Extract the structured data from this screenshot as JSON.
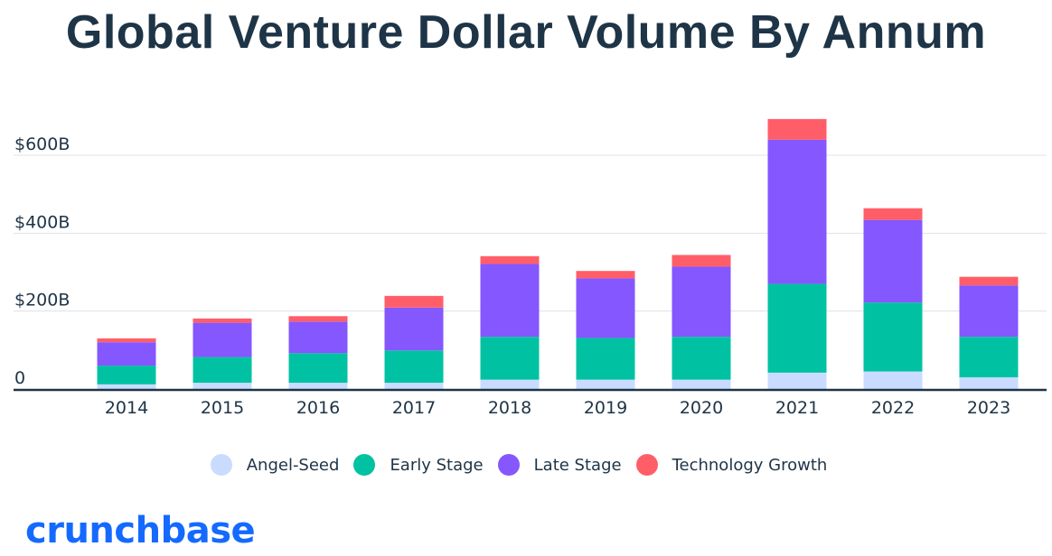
{
  "chart_data": {
    "type": "bar",
    "stacked": true,
    "title": "Global Venture Dollar Volume By Annum",
    "categories": [
      "2014",
      "2015",
      "2016",
      "2017",
      "2018",
      "2019",
      "2020",
      "2021",
      "2022",
      "2023"
    ],
    "series": [
      {
        "name": "Angel-Seed",
        "color": "#c9dcff",
        "values": [
          12,
          16,
          16,
          16,
          24,
          24,
          24,
          42,
          45,
          30
        ]
      },
      {
        "name": "Early Stage",
        "color": "#00c2a2",
        "values": [
          48,
          66,
          76,
          83,
          110,
          107,
          110,
          228,
          177,
          104
        ]
      },
      {
        "name": "Late Stage",
        "color": "#8457ff",
        "values": [
          60,
          88,
          81,
          110,
          187,
          153,
          180,
          370,
          212,
          132
        ]
      },
      {
        "name": "Technology Growth",
        "color": "#ff5e69",
        "values": [
          10,
          11,
          14,
          30,
          20,
          19,
          30,
          53,
          30,
          22
        ]
      }
    ],
    "yticks": [
      {
        "value": 0,
        "label": "0"
      },
      {
        "value": 200,
        "label": "$200B"
      },
      {
        "value": 400,
        "label": "$400B"
      },
      {
        "value": 600,
        "label": "$600B"
      }
    ],
    "ylim": [
      0,
      700
    ],
    "grid": true,
    "legend_position": "bottom"
  },
  "brand": {
    "logo_text": "crunchbase",
    "logo_color": "#146aff",
    "text_color": "#1e3447"
  }
}
